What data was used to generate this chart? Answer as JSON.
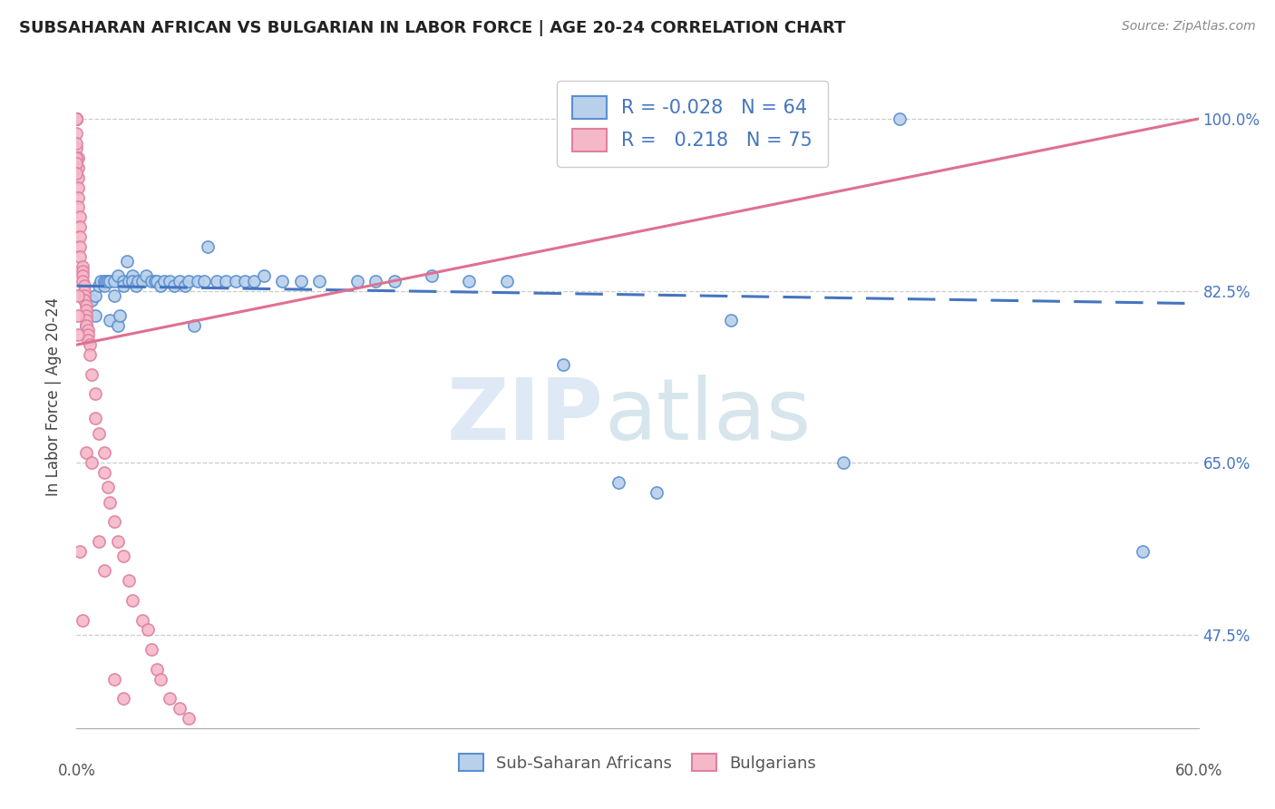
{
  "title": "SUBSAHARAN AFRICAN VS BULGARIAN IN LABOR FORCE | AGE 20-24 CORRELATION CHART",
  "source": "Source: ZipAtlas.com",
  "ylabel": "In Labor Force | Age 20-24",
  "ytick_vals": [
    0.475,
    0.65,
    0.825,
    1.0
  ],
  "ytick_labels": [
    "47.5%",
    "65.0%",
    "82.5%",
    "100.0%"
  ],
  "xmin": 0.0,
  "xmax": 0.6,
  "ymin": 0.38,
  "ymax": 1.055,
  "blue_R": "-0.028",
  "blue_N": "64",
  "pink_R": "0.218",
  "pink_N": "75",
  "blue_fill": "#b8d0ea",
  "pink_fill": "#f5b8c8",
  "blue_edge": "#5a8fd0",
  "pink_edge": "#e080a0",
  "blue_line": "#4575c0",
  "pink_line": "#e07090",
  "legend_label_blue": "Sub-Saharan Africans",
  "legend_label_pink": "Bulgarians",
  "blue_scatter_x": [
    0.005,
    0.005,
    0.008,
    0.01,
    0.01,
    0.012,
    0.013,
    0.015,
    0.015,
    0.016,
    0.017,
    0.018,
    0.018,
    0.02,
    0.02,
    0.022,
    0.022,
    0.023,
    0.025,
    0.025,
    0.027,
    0.028,
    0.03,
    0.03,
    0.032,
    0.033,
    0.035,
    0.037,
    0.04,
    0.042,
    0.043,
    0.045,
    0.047,
    0.05,
    0.052,
    0.055,
    0.058,
    0.06,
    0.063,
    0.065,
    0.068,
    0.07,
    0.075,
    0.08,
    0.085,
    0.09,
    0.095,
    0.1,
    0.11,
    0.12,
    0.13,
    0.15,
    0.16,
    0.17,
    0.19,
    0.21,
    0.23,
    0.26,
    0.29,
    0.31,
    0.35,
    0.41,
    0.44,
    0.57
  ],
  "blue_scatter_y": [
    0.8,
    0.79,
    0.815,
    0.82,
    0.8,
    0.83,
    0.835,
    0.835,
    0.83,
    0.835,
    0.835,
    0.835,
    0.795,
    0.835,
    0.82,
    0.84,
    0.79,
    0.8,
    0.835,
    0.83,
    0.855,
    0.835,
    0.84,
    0.835,
    0.83,
    0.835,
    0.835,
    0.84,
    0.835,
    0.835,
    0.835,
    0.83,
    0.835,
    0.835,
    0.83,
    0.835,
    0.83,
    0.835,
    0.79,
    0.835,
    0.835,
    0.87,
    0.835,
    0.835,
    0.835,
    0.835,
    0.835,
    0.84,
    0.835,
    0.835,
    0.835,
    0.835,
    0.835,
    0.835,
    0.84,
    0.835,
    0.835,
    0.75,
    0.63,
    0.62,
    0.795,
    0.65,
    1.0,
    0.56
  ],
  "pink_scatter_x": [
    0.0,
    0.0,
    0.0,
    0.0,
    0.0,
    0.0,
    0.0,
    0.0,
    0.0,
    0.001,
    0.001,
    0.001,
    0.001,
    0.001,
    0.001,
    0.002,
    0.002,
    0.002,
    0.002,
    0.002,
    0.003,
    0.003,
    0.003,
    0.003,
    0.004,
    0.004,
    0.004,
    0.004,
    0.005,
    0.005,
    0.005,
    0.005,
    0.005,
    0.006,
    0.006,
    0.006,
    0.007,
    0.007,
    0.008,
    0.01,
    0.01,
    0.012,
    0.015,
    0.015,
    0.017,
    0.018,
    0.02,
    0.022,
    0.025,
    0.028,
    0.03,
    0.035,
    0.038,
    0.04,
    0.043,
    0.045,
    0.05,
    0.055,
    0.06,
    0.0,
    0.0,
    0.0,
    0.0,
    0.0,
    0.001,
    0.001,
    0.001,
    0.002,
    0.003,
    0.005,
    0.008,
    0.012,
    0.015,
    0.02,
    0.025
  ],
  "pink_scatter_y": [
    1.0,
    1.0,
    1.0,
    1.0,
    1.0,
    1.0,
    1.0,
    1.0,
    0.97,
    0.96,
    0.95,
    0.94,
    0.93,
    0.92,
    0.91,
    0.9,
    0.89,
    0.88,
    0.87,
    0.86,
    0.85,
    0.845,
    0.84,
    0.835,
    0.83,
    0.825,
    0.82,
    0.815,
    0.81,
    0.805,
    0.8,
    0.795,
    0.79,
    0.785,
    0.78,
    0.775,
    0.77,
    0.76,
    0.74,
    0.72,
    0.695,
    0.68,
    0.66,
    0.64,
    0.625,
    0.61,
    0.59,
    0.57,
    0.555,
    0.53,
    0.51,
    0.49,
    0.48,
    0.46,
    0.44,
    0.43,
    0.41,
    0.4,
    0.39,
    0.985,
    0.975,
    0.96,
    0.955,
    0.945,
    0.82,
    0.8,
    0.78,
    0.56,
    0.49,
    0.66,
    0.65,
    0.57,
    0.54,
    0.43,
    0.41
  ]
}
